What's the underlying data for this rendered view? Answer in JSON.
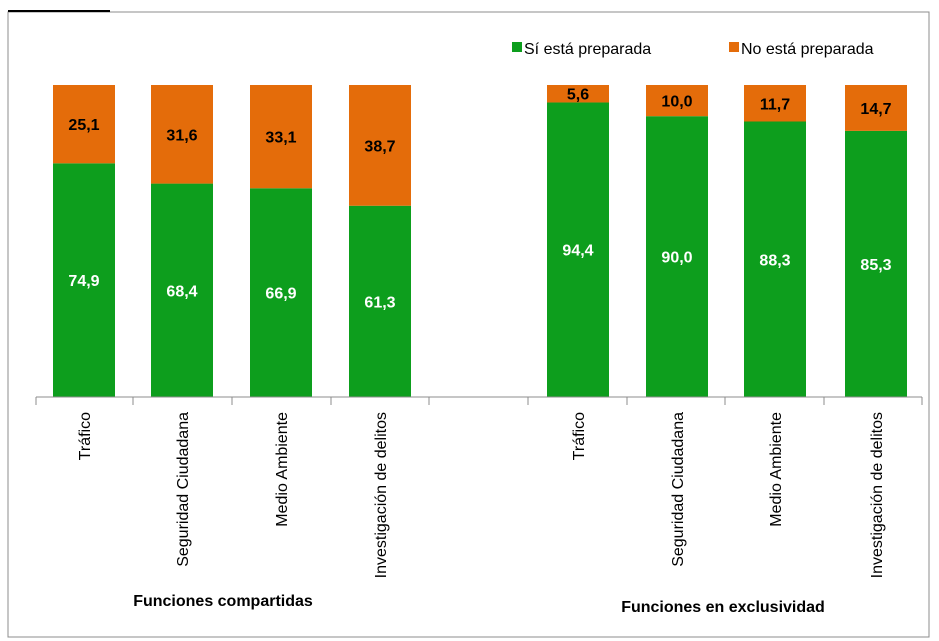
{
  "chart_data": {
    "type": "bar",
    "stacked": true,
    "percent_stacked": true,
    "ylim": [
      0,
      100
    ],
    "grid": false,
    "legend_placement": "top-right",
    "groups": [
      {
        "label": "Funciones compartidas",
        "categories": [
          "Tráfico",
          "Seguridad Ciudadana",
          "Medio Ambiente",
          "Investigación de delitos"
        ],
        "series": [
          {
            "name": "Sí está preparada",
            "values": [
              74.9,
              68.4,
              66.9,
              61.3
            ],
            "labels": [
              "74,9",
              "68,4",
              "66,9",
              "61,3"
            ]
          },
          {
            "name": "No está preparada",
            "values": [
              25.1,
              31.6,
              33.1,
              38.7
            ],
            "labels": [
              "25,1",
              "31,6",
              "33,1",
              "38,7"
            ]
          }
        ]
      },
      {
        "label": "Funciones  en exclusividad",
        "categories": [
          "Tráfico",
          "Seguridad Ciudadana",
          "Medio Ambiente",
          "Investigación de delitos"
        ],
        "series": [
          {
            "name": "Sí está preparada",
            "values": [
              94.4,
              90.0,
              88.3,
              85.3
            ],
            "labels": [
              "94,4",
              "90,0",
              "88,3",
              "85,3"
            ]
          },
          {
            "name": "No está preparada",
            "values": [
              5.6,
              10.0,
              11.7,
              14.7
            ],
            "labels": [
              "5,6",
              "10,0",
              "11,7",
              "14,7"
            ]
          }
        ]
      }
    ],
    "legend": [
      {
        "name": "Sí está preparada",
        "color": "#0d9e1d"
      },
      {
        "name": "No está preparada",
        "color": "#e46c0a"
      }
    ],
    "colors": {
      "si": "#0d9e1d",
      "no": "#e46c0a",
      "si_label": "#ffffff",
      "no_label": "#000000"
    }
  }
}
